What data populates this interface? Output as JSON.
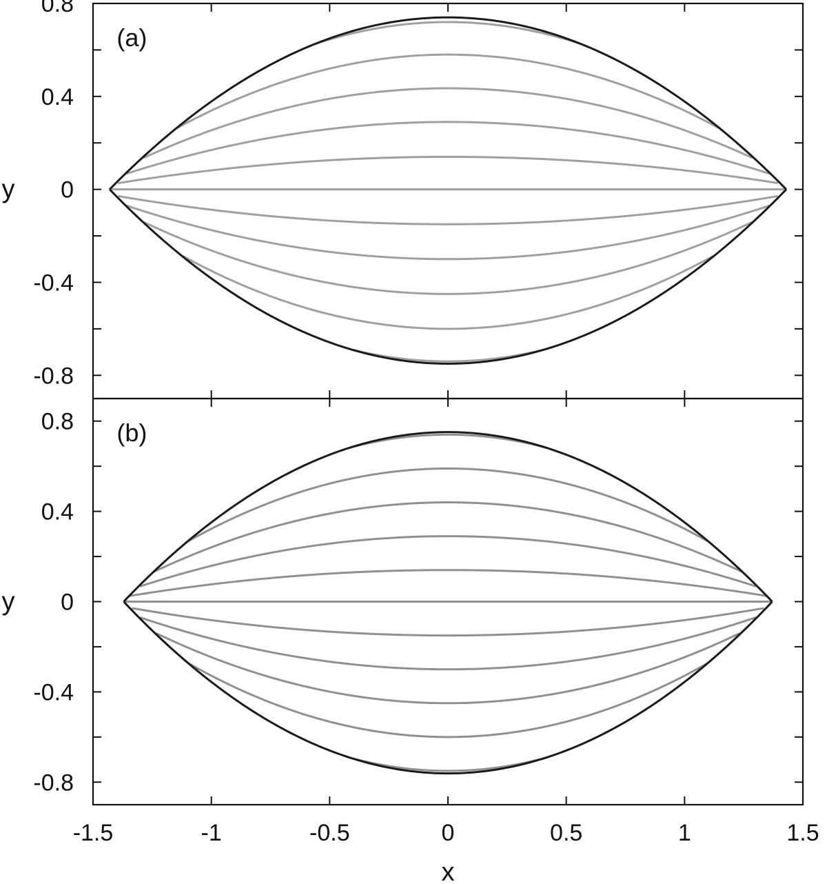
{
  "chart_data": [
    {
      "type": "line",
      "panel_label": "(a)",
      "xlabel": "",
      "ylabel": "y",
      "xlim": [
        -1.5,
        1.5
      ],
      "ylim": [
        -0.9,
        0.8
      ],
      "yticks": [
        0.8,
        0.4,
        0,
        -0.4,
        -0.8
      ],
      "ytick_labels": [
        "0.8",
        "0.4",
        "0",
        "-0.4",
        "-0.8"
      ],
      "grid": false,
      "colors": {
        "boundary": "#1a1a1a",
        "streamlines": "#a0a0a0"
      },
      "boundary": {
        "shape": "lens-with-pointed-tips",
        "x_extent": [
          -1.43,
          1.43
        ],
        "y_extent": [
          -0.75,
          0.74
        ]
      },
      "streamlines": {
        "count": 11,
        "center_y": [
          0.72,
          0.58,
          0.435,
          0.29,
          0.14,
          0.0,
          -0.15,
          -0.3,
          -0.45,
          -0.6,
          -0.74
        ]
      }
    },
    {
      "type": "line",
      "panel_label": "(b)",
      "xlabel": "x",
      "ylabel": "y",
      "xlim": [
        -1.5,
        1.5
      ],
      "ylim": [
        -0.9,
        0.9
      ],
      "xticks": [
        -1.5,
        -1,
        -0.5,
        0,
        0.5,
        1,
        1.5
      ],
      "xtick_labels": [
        "-1.5",
        "-1",
        "-0.5",
        "0",
        "0.5",
        "1",
        "1.5"
      ],
      "yticks": [
        0.8,
        0.4,
        0,
        -0.4,
        -0.8
      ],
      "ytick_labels": [
        "0.8",
        "0.4",
        "0",
        "-0.4",
        "-0.8"
      ],
      "grid": false,
      "colors": {
        "boundary": "#1a1a1a",
        "streamlines": "#909090"
      },
      "boundary": {
        "shape": "lens-with-rounded-tips",
        "x_extent": [
          -1.37,
          1.37
        ],
        "y_extent": [
          -0.76,
          0.75
        ]
      },
      "streamlines": {
        "count": 11,
        "center_y": [
          0.74,
          0.59,
          0.44,
          0.29,
          0.14,
          0.0,
          -0.15,
          -0.3,
          -0.45,
          -0.6,
          -0.75
        ]
      }
    }
  ]
}
